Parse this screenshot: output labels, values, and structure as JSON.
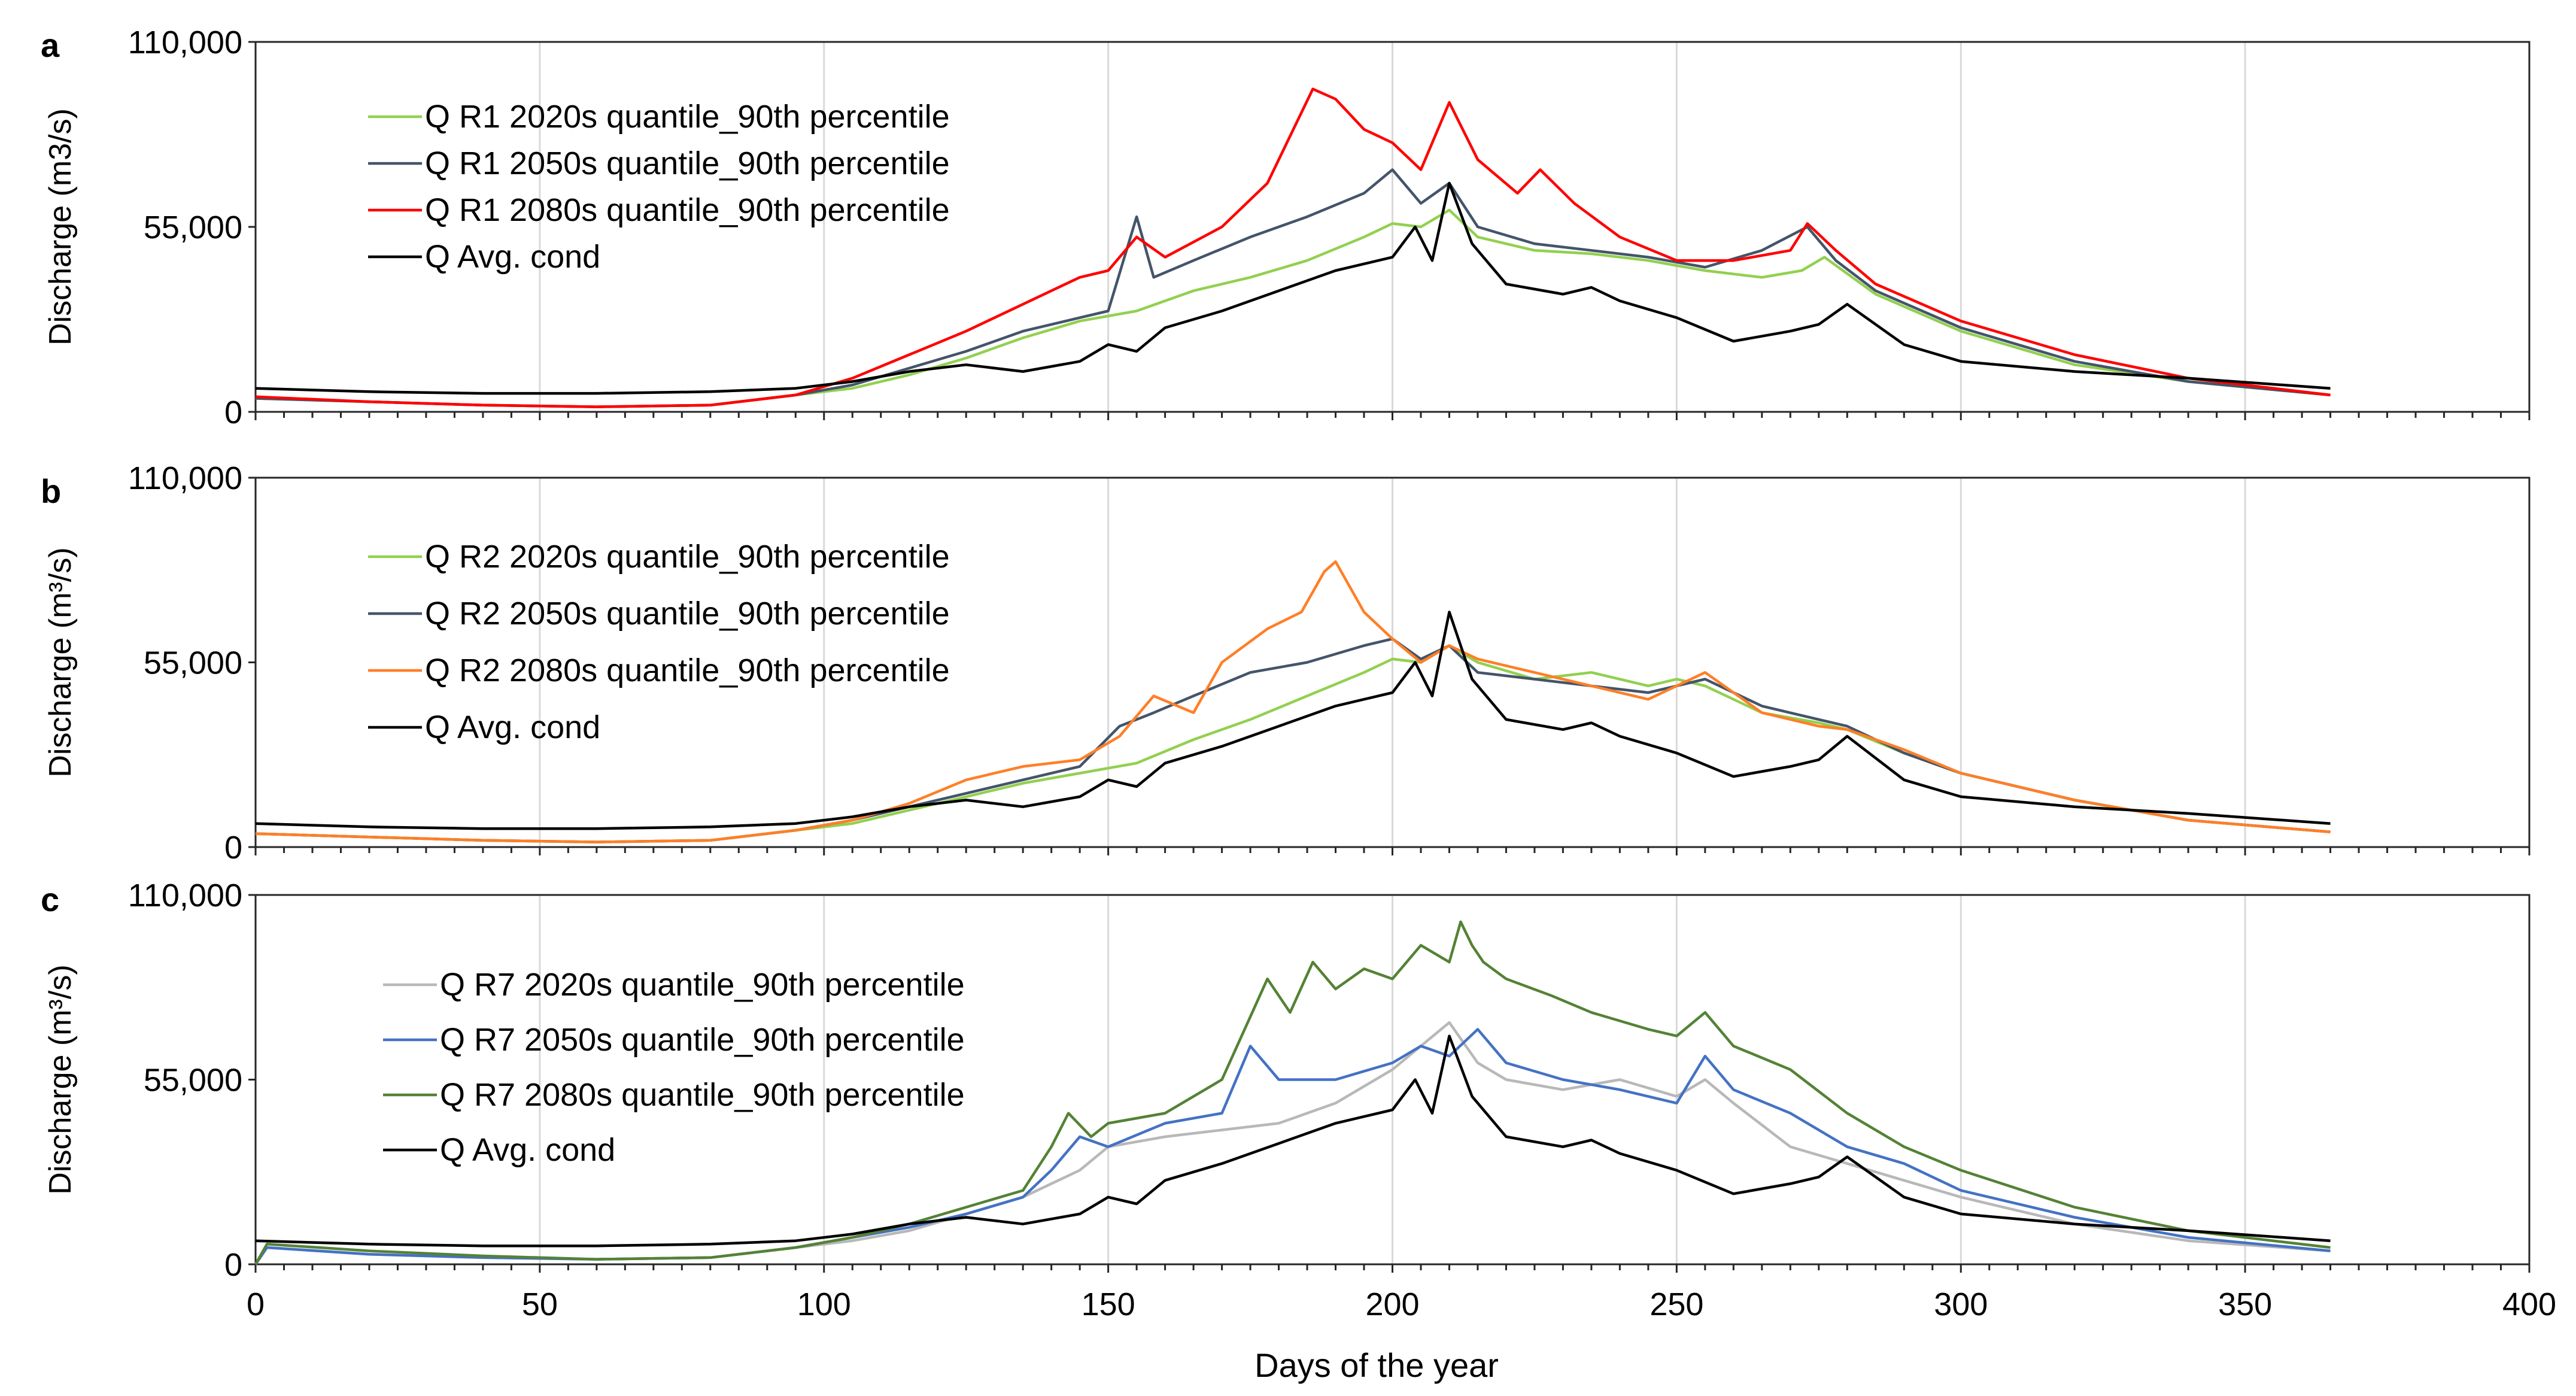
{
  "figure": {
    "xlabel": "Days of the year"
  },
  "chart_data": [
    {
      "panel": "a",
      "type": "line",
      "title": "",
      "xlabel": "Days of the year",
      "ylabel": "Discharge (m3/s)",
      "xlim": [
        0,
        400
      ],
      "ylim": [
        0,
        110000
      ],
      "x_ticks": [
        0,
        50,
        100,
        150,
        200,
        250,
        300,
        350,
        400
      ],
      "y_ticks": [
        0,
        55000,
        110000
      ],
      "y_tick_labels": [
        "0",
        "55,000",
        "110,000"
      ],
      "grid": "vertical",
      "legend_position": "top-left",
      "series": [
        {
          "name": "Q R1 2020s quantile_90th percentile",
          "color": "#92d050",
          "x": [
            0,
            20,
            40,
            60,
            80,
            95,
            105,
            115,
            125,
            135,
            145,
            155,
            165,
            175,
            185,
            195,
            200,
            205,
            210,
            215,
            225,
            235,
            245,
            255,
            265,
            272,
            276,
            285,
            300,
            320,
            340,
            365
          ],
          "y": [
            4000,
            3000,
            2000,
            1500,
            2000,
            5000,
            7000,
            11000,
            16000,
            22000,
            27000,
            30000,
            36000,
            40000,
            45000,
            52000,
            56000,
            55000,
            60000,
            52000,
            48000,
            47000,
            45000,
            42000,
            40000,
            42000,
            46000,
            35000,
            24000,
            14000,
            9000,
            5000
          ]
        },
        {
          "name": "Q R1 2050s quantile_90th percentile",
          "color": "#44546a",
          "x": [
            0,
            20,
            40,
            60,
            80,
            95,
            105,
            115,
            125,
            135,
            145,
            150,
            155,
            158,
            165,
            175,
            185,
            195,
            200,
            205,
            210,
            215,
            225,
            235,
            245,
            255,
            265,
            273,
            278,
            285,
            300,
            320,
            340,
            365
          ],
          "y": [
            4000,
            3000,
            2000,
            1500,
            2000,
            5000,
            8000,
            13000,
            18000,
            24000,
            28000,
            30000,
            58000,
            40000,
            45000,
            52000,
            58000,
            65000,
            72000,
            62000,
            68000,
            55000,
            50000,
            48000,
            46000,
            43000,
            48000,
            55000,
            45000,
            36000,
            25000,
            15000,
            9000,
            5000
          ]
        },
        {
          "name": "Q R1 2080s quantile_90th percentile",
          "color": "#ff0000",
          "x": [
            0,
            20,
            40,
            60,
            80,
            95,
            105,
            115,
            125,
            135,
            145,
            150,
            155,
            160,
            170,
            178,
            182,
            186,
            190,
            195,
            200,
            205,
            210,
            215,
            222,
            226,
            232,
            240,
            250,
            260,
            270,
            273,
            278,
            285,
            300,
            320,
            340,
            365
          ],
          "y": [
            4500,
            3000,
            2000,
            1500,
            2000,
            5000,
            10000,
            17000,
            24000,
            32000,
            40000,
            42000,
            52000,
            46000,
            55000,
            68000,
            82000,
            96000,
            93000,
            84000,
            80000,
            72000,
            92000,
            75000,
            65000,
            72000,
            62000,
            52000,
            45000,
            45000,
            48000,
            56000,
            48000,
            38000,
            27000,
            17000,
            10000,
            5000
          ]
        },
        {
          "name": "Q Avg. cond",
          "color": "#000000",
          "x": [
            0,
            20,
            40,
            60,
            80,
            95,
            105,
            115,
            125,
            135,
            145,
            150,
            155,
            160,
            170,
            180,
            190,
            195,
            200,
            204,
            207,
            210,
            214,
            220,
            230,
            235,
            240,
            250,
            260,
            270,
            275,
            280,
            290,
            300,
            320,
            340,
            365
          ],
          "y": [
            7000,
            6000,
            5500,
            5500,
            6000,
            7000,
            9000,
            12000,
            14000,
            12000,
            15000,
            20000,
            18000,
            25000,
            30000,
            36000,
            42000,
            44000,
            46000,
            55000,
            45000,
            68000,
            50000,
            38000,
            35000,
            37000,
            33000,
            28000,
            21000,
            24000,
            26000,
            32000,
            20000,
            15000,
            12000,
            10000,
            7000
          ]
        }
      ]
    },
    {
      "panel": "b",
      "type": "line",
      "title": "",
      "xlabel": "Days of the year",
      "ylabel": "Discharge (m³/s)",
      "xlim": [
        0,
        400
      ],
      "ylim": [
        0,
        110000
      ],
      "x_ticks": [
        0,
        50,
        100,
        150,
        200,
        250,
        300,
        350,
        400
      ],
      "y_ticks": [
        0,
        55000,
        110000
      ],
      "y_tick_labels": [
        "0",
        "55,000",
        "110,000"
      ],
      "grid": "vertical",
      "legend_position": "top-left",
      "series": [
        {
          "name": "Q R2 2020s quantile_90th percentile",
          "color": "#92d050",
          "x": [
            0,
            20,
            40,
            60,
            80,
            95,
            105,
            115,
            125,
            135,
            145,
            155,
            165,
            175,
            185,
            195,
            200,
            205,
            210,
            215,
            225,
            235,
            245,
            250,
            255,
            265,
            275,
            280,
            290,
            300,
            320,
            340,
            365
          ],
          "y": [
            4000,
            3000,
            2000,
            1500,
            2000,
            5000,
            7000,
            11000,
            15000,
            19000,
            22000,
            25000,
            32000,
            38000,
            45000,
            52000,
            56000,
            55000,
            60000,
            55000,
            50000,
            52000,
            48000,
            50000,
            48000,
            40000,
            37000,
            35000,
            28000,
            22000,
            14000,
            8000,
            4500
          ]
        },
        {
          "name": "Q R2 2050s quantile_90th percentile",
          "color": "#44546a",
          "x": [
            0,
            20,
            40,
            60,
            80,
            95,
            105,
            115,
            125,
            135,
            145,
            152,
            158,
            165,
            175,
            185,
            195,
            200,
            205,
            210,
            215,
            225,
            235,
            245,
            255,
            265,
            275,
            280,
            290,
            300,
            320,
            340,
            365
          ],
          "y": [
            4000,
            3000,
            2000,
            1500,
            2000,
            5000,
            8000,
            12000,
            16000,
            20000,
            24000,
            36000,
            40000,
            45000,
            52000,
            55000,
            60000,
            62000,
            56000,
            60000,
            52000,
            50000,
            48000,
            46000,
            50000,
            42000,
            38000,
            36000,
            28000,
            22000,
            14000,
            8000,
            4500
          ]
        },
        {
          "name": "Q R2 2080s quantile_90th percentile",
          "color": "#ff7f27",
          "x": [
            0,
            20,
            40,
            60,
            80,
            95,
            105,
            115,
            125,
            135,
            145,
            152,
            158,
            165,
            170,
            178,
            184,
            188,
            190,
            195,
            200,
            205,
            210,
            215,
            225,
            235,
            245,
            255,
            265,
            275,
            280,
            290,
            300,
            320,
            340,
            365
          ],
          "y": [
            4000,
            3000,
            2000,
            1500,
            2000,
            5000,
            8000,
            13000,
            20000,
            24000,
            26000,
            33000,
            45000,
            40000,
            55000,
            65000,
            70000,
            82000,
            85000,
            70000,
            62000,
            55000,
            60000,
            56000,
            52000,
            48000,
            44000,
            52000,
            40000,
            36000,
            35000,
            29000,
            22000,
            14000,
            8000,
            4500
          ]
        },
        {
          "name": "Q Avg. cond",
          "color": "#000000",
          "x": [
            0,
            20,
            40,
            60,
            80,
            95,
            105,
            115,
            125,
            135,
            145,
            150,
            155,
            160,
            170,
            180,
            190,
            195,
            200,
            204,
            207,
            210,
            214,
            220,
            230,
            235,
            240,
            250,
            260,
            270,
            275,
            280,
            290,
            300,
            320,
            340,
            365
          ],
          "y": [
            7000,
            6000,
            5500,
            5500,
            6000,
            7000,
            9000,
            12000,
            14000,
            12000,
            15000,
            20000,
            18000,
            25000,
            30000,
            36000,
            42000,
            44000,
            46000,
            55000,
            45000,
            70000,
            50000,
            38000,
            35000,
            37000,
            33000,
            28000,
            21000,
            24000,
            26000,
            33000,
            20000,
            15000,
            12000,
            10000,
            7000
          ]
        }
      ]
    },
    {
      "panel": "c",
      "type": "line",
      "title": "",
      "xlabel": "Days of the year",
      "ylabel": "Discharge (m³/s)",
      "xlim": [
        0,
        400
      ],
      "ylim": [
        0,
        110000
      ],
      "x_ticks": [
        0,
        50,
        100,
        150,
        200,
        250,
        300,
        350,
        400
      ],
      "x_tick_labels": [
        "0",
        "50",
        "100",
        "150",
        "200",
        "250",
        "300",
        "350",
        "400"
      ],
      "y_ticks": [
        0,
        55000,
        110000
      ],
      "y_tick_labels": [
        "0",
        "55,000",
        "110,000"
      ],
      "grid": "vertical",
      "legend_position": "top-left",
      "series": [
        {
          "name": "Q R7 2020s quantile_90th percentile",
          "color": "#b8b8b8",
          "x": [
            0,
            2,
            20,
            40,
            60,
            80,
            95,
            105,
            115,
            125,
            135,
            145,
            150,
            160,
            170,
            180,
            190,
            200,
            205,
            210,
            215,
            220,
            230,
            240,
            250,
            255,
            260,
            270,
            280,
            290,
            300,
            320,
            340,
            365
          ],
          "y": [
            0,
            5000,
            3000,
            2000,
            1500,
            2000,
            5000,
            7000,
            10000,
            15000,
            20000,
            28000,
            35000,
            38000,
            40000,
            42000,
            48000,
            58000,
            65000,
            72000,
            60000,
            55000,
            52000,
            55000,
            50000,
            55000,
            48000,
            35000,
            30000,
            25000,
            20000,
            12000,
            7000,
            4000
          ]
        },
        {
          "name": "Q R7 2050s quantile_90th percentile",
          "color": "#4472c4",
          "x": [
            0,
            2,
            20,
            40,
            60,
            80,
            95,
            105,
            115,
            125,
            135,
            140,
            145,
            150,
            160,
            170,
            175,
            180,
            190,
            200,
            205,
            210,
            215,
            220,
            230,
            240,
            250,
            255,
            260,
            270,
            280,
            290,
            300,
            320,
            340,
            365
          ],
          "y": [
            0,
            5000,
            3000,
            2000,
            1500,
            2000,
            5000,
            8000,
            11000,
            15000,
            20000,
            28000,
            38000,
            35000,
            42000,
            45000,
            65000,
            55000,
            55000,
            60000,
            65000,
            62000,
            70000,
            60000,
            55000,
            52000,
            48000,
            62000,
            52000,
            45000,
            35000,
            30000,
            22000,
            14000,
            8000,
            4000
          ]
        },
        {
          "name": "Q R7 2080s quantile_90th percentile",
          "color": "#548235",
          "x": [
            0,
            2,
            20,
            40,
            60,
            80,
            95,
            105,
            115,
            125,
            135,
            140,
            143,
            147,
            150,
            160,
            170,
            178,
            182,
            186,
            190,
            195,
            200,
            205,
            210,
            212,
            214,
            216,
            220,
            228,
            235,
            245,
            250,
            255,
            260,
            270,
            280,
            290,
            300,
            320,
            340,
            365
          ],
          "y": [
            0,
            6000,
            4000,
            2500,
            1500,
            2000,
            5000,
            8000,
            12000,
            17000,
            22000,
            35000,
            45000,
            38000,
            42000,
            45000,
            55000,
            85000,
            75000,
            90000,
            82000,
            88000,
            85000,
            95000,
            90000,
            102000,
            95000,
            90000,
            85000,
            80000,
            75000,
            70000,
            68000,
            75000,
            65000,
            58000,
            45000,
            35000,
            28000,
            17000,
            10000,
            5000
          ]
        },
        {
          "name": "Q Avg. cond",
          "color": "#000000",
          "x": [
            0,
            20,
            40,
            60,
            80,
            95,
            105,
            115,
            125,
            135,
            145,
            150,
            155,
            160,
            170,
            180,
            190,
            195,
            200,
            204,
            207,
            210,
            214,
            220,
            230,
            235,
            240,
            250,
            260,
            270,
            275,
            280,
            290,
            300,
            320,
            340,
            365
          ],
          "y": [
            7000,
            6000,
            5500,
            5500,
            6000,
            7000,
            9000,
            12000,
            14000,
            12000,
            15000,
            20000,
            18000,
            25000,
            30000,
            36000,
            42000,
            44000,
            46000,
            55000,
            45000,
            68000,
            50000,
            38000,
            35000,
            37000,
            33000,
            28000,
            21000,
            24000,
            26000,
            32000,
            20000,
            15000,
            12000,
            10000,
            7000
          ]
        }
      ]
    }
  ]
}
